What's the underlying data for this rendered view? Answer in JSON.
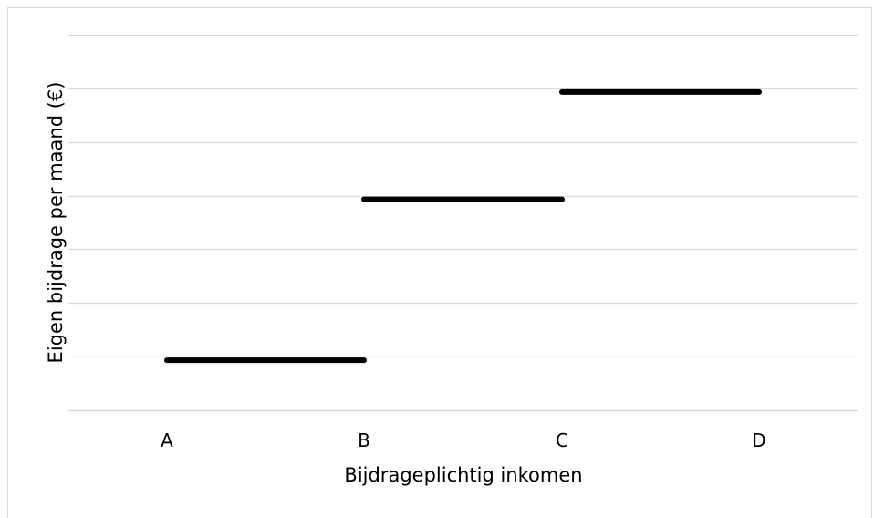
{
  "chart_data": {
    "type": "line",
    "title": "",
    "xlabel": "Bijdrageplichtig inkomen",
    "ylabel": "Eigen bijdrage per maand (€)",
    "categories": [
      "A",
      "B",
      "C",
      "D"
    ],
    "steps": [
      {
        "x_start": "A",
        "x_end": "B",
        "level": 1
      },
      {
        "x_start": "B",
        "x_end": "C",
        "level": 4
      },
      {
        "x_start": "C",
        "x_end": "D",
        "level": 6
      }
    ],
    "y_gridlines": 7,
    "grid": true,
    "legend": "none",
    "colors": {
      "line": "#000000",
      "grid": "#d9d9d9",
      "frame": "#d9d9d9"
    }
  }
}
